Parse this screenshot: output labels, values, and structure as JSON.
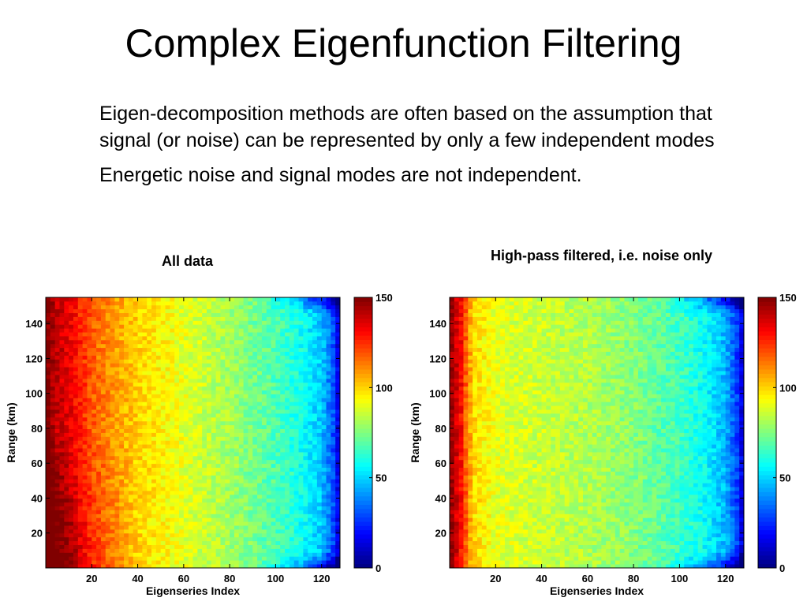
{
  "slide": {
    "title": "Complex Eigenfunction Filtering",
    "bullets": [
      "Eigen-decomposition methods are often based on the assumption that signal (or noise) can be represented by only a few independent modes",
      "Energetic noise and signal modes are not independent."
    ]
  },
  "chart_data": [
    {
      "type": "heatmap",
      "title": "All data",
      "xlabel": "Eigenseries Index",
      "ylabel": "Range (km)",
      "xlim": [
        0,
        128
      ],
      "ylim": [
        0,
        155
      ],
      "xticks": [
        20,
        40,
        60,
        80,
        100,
        120
      ],
      "yticks": [
        20,
        40,
        60,
        80,
        100,
        120,
        140
      ],
      "colorbar": {
        "min": 0,
        "max": 150,
        "ticks": [
          0,
          50,
          100,
          150
        ],
        "colormap": "jet"
      },
      "value_profile": {
        "eigenseries_index": [
          1,
          5,
          10,
          20,
          30,
          40,
          60,
          80,
          100,
          110,
          120,
          125,
          128
        ],
        "typical_value": [
          150,
          140,
          135,
          118,
          108,
          100,
          90,
          80,
          68,
          60,
          48,
          30,
          10
        ]
      }
    },
    {
      "type": "heatmap",
      "title": "High-pass filtered, i.e. noise only",
      "xlabel": "Eigenseries Index",
      "ylabel": "Range (km)",
      "xlim": [
        0,
        128
      ],
      "ylim": [
        0,
        155
      ],
      "xticks": [
        20,
        40,
        60,
        80,
        100,
        120
      ],
      "yticks": [
        20,
        40,
        60,
        80,
        100,
        120,
        140
      ],
      "colorbar": {
        "min": 0,
        "max": 150,
        "ticks": [
          0,
          50,
          100,
          150
        ],
        "colormap": "jet"
      },
      "value_profile": {
        "eigenseries_index": [
          1,
          5,
          10,
          20,
          40,
          60,
          80,
          100,
          110,
          120,
          125,
          128
        ],
        "typical_value": [
          145,
          130,
          100,
          90,
          86,
          82,
          76,
          66,
          58,
          45,
          28,
          10
        ]
      }
    }
  ]
}
